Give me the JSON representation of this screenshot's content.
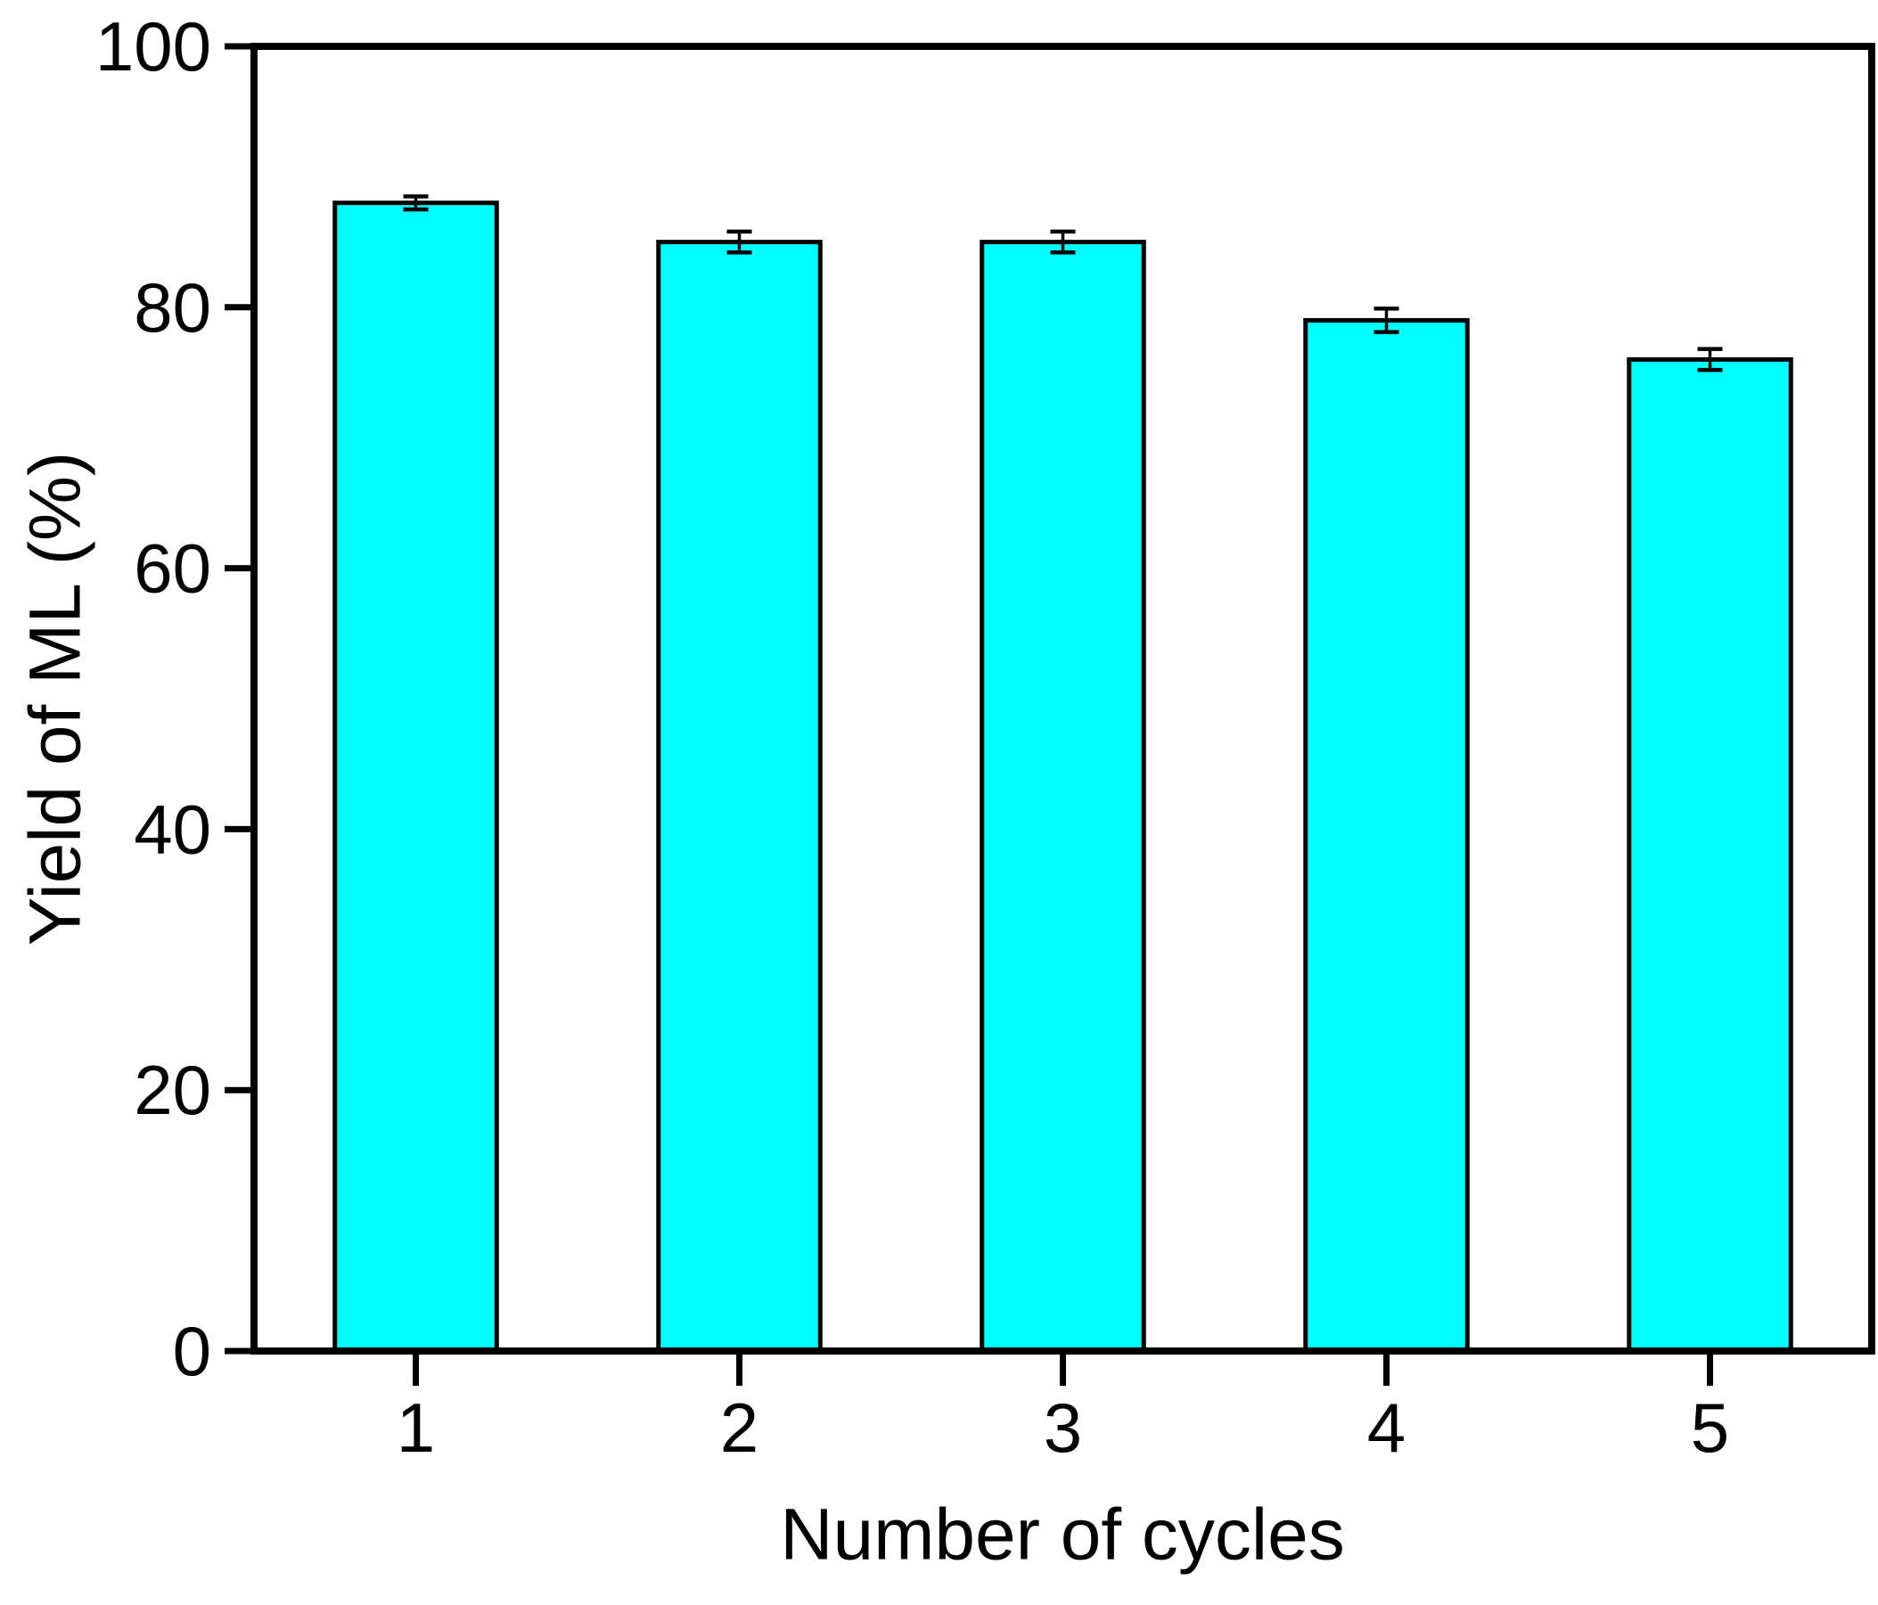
{
  "chart_data": {
    "type": "bar",
    "title": "",
    "xlabel": "Number of cycles",
    "ylabel": "Yield of ML (%)",
    "categories": [
      1,
      2,
      3,
      4,
      5
    ],
    "values": [
      88,
      85,
      85,
      79,
      76
    ],
    "errors": [
      0.5,
      0.8,
      0.8,
      0.9,
      0.8
    ],
    "series_name": "Yield of ML",
    "xticks": [
      "1",
      "2",
      "3",
      "4",
      "5"
    ],
    "yticks": [
      "0",
      "20",
      "40",
      "60",
      "80",
      "100"
    ],
    "ytick_values": [
      0,
      20,
      40,
      60,
      80,
      100
    ],
    "xlim": [
      0.5,
      5.5
    ],
    "ylim": [
      0,
      100
    ],
    "grid": false,
    "legend": null,
    "bar_width_fraction": 0.5,
    "colors": {
      "bar_fill": "#00FFFF",
      "bar_edge": "#000000",
      "axis": "#000000",
      "error_bar": "#000000",
      "background": "#FFFFFF"
    }
  }
}
